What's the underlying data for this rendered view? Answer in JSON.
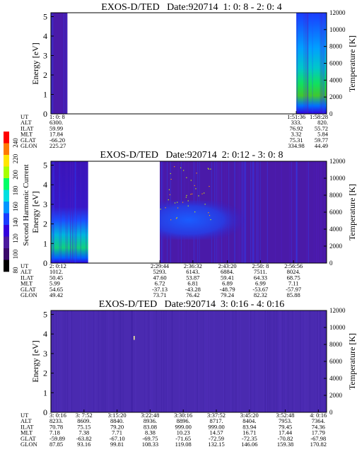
{
  "colorbar": {
    "label": "Second Harmonic Current",
    "ticks": [
      "240",
      "220",
      "200",
      "180",
      "160",
      "140",
      "120",
      "100",
      "80"
    ],
    "colors": [
      "#ff0000",
      "#ff7a00",
      "#ffe600",
      "#a8ff00",
      "#00ff66",
      "#00e0e0",
      "#0096ff",
      "#1a3cff",
      "#3300dd",
      "#4b1a9e",
      "#3a0a6a",
      "#000000"
    ]
  },
  "chart_data": [
    {
      "type": "heatmap",
      "title": "EXOS-D/TED   Date:920714  1: 0: 8 - 2: 0: 4",
      "ylabel": "Energy [eV]",
      "y2label": "Temperature [K]",
      "ylim": [
        0,
        5.2
      ],
      "y2lim": [
        0,
        12000
      ],
      "yticks": [
        "0",
        "1",
        "2",
        "3",
        "4",
        "5"
      ],
      "y2ticks": [
        "0",
        "2000",
        "4000",
        "6000",
        "8000",
        "10000",
        "12000"
      ],
      "data_segments": [
        [
          0,
          0.06
        ],
        [
          0.89,
          1.0
        ]
      ],
      "orbit_table": {
        "rows": [
          "UT",
          "ALT",
          "ILAT",
          "MLT",
          "GLAT",
          "GLON"
        ],
        "columns": [
          {
            "pos": 0,
            "values": [
              "1: 0: 8",
              "6300.",
              "59.99",
              "17.84",
              "-66.20",
              "225.27"
            ]
          },
          {
            "pos": 0.89,
            "values": [
              "1:51:36",
              "333.",
              "76.92",
              "3.32",
              "75.31",
              "334.98"
            ]
          },
          {
            "pos": 1.0,
            "values": [
              "1:58:28",
              "820.",
              "55.72",
              "5.84",
              "59.77",
              "44.49"
            ]
          }
        ]
      }
    },
    {
      "type": "heatmap",
      "title": "EXOS-D/TED   Date:920714  2: 0:12 - 3: 0: 8",
      "ylabel": "Energy [eV]",
      "y2label": "Temperature [K]",
      "ylim": [
        0,
        5.2
      ],
      "y2lim": [
        0,
        12000
      ],
      "yticks": [
        "0",
        "1",
        "2",
        "3",
        "4",
        "5"
      ],
      "y2ticks": [
        "0",
        "2000",
        "4000",
        "6000",
        "8000",
        "10000",
        "12000"
      ],
      "data_segments": [
        [
          0,
          0.135
        ],
        [
          0.395,
          1.0
        ]
      ],
      "orbit_table": {
        "rows": [
          "UT",
          "ALT",
          "ILAT",
          "MLT",
          "GLAT",
          "GLON"
        ],
        "columns": [
          {
            "pos": 0,
            "values": [
              "2: 0:12",
              "1012.",
              "50.45",
              "5.99",
              "54.65",
              "49.42"
            ]
          },
          {
            "pos": 0.395,
            "values": [
              "2:29:44",
              "5293.",
              "47.60",
              "6.72",
              "-37.13",
              "73.71"
            ]
          },
          {
            "pos": 0.515,
            "values": [
              "2:36:32",
              "6143.",
              "53.87",
              "6.81",
              "-43.28",
              "76.42"
            ]
          },
          {
            "pos": 0.64,
            "values": [
              "2:43:20",
              "6884.",
              "59.41",
              "6.89",
              "-48.79",
              "79.24"
            ]
          },
          {
            "pos": 0.76,
            "values": [
              "2:50: 8",
              "7511.",
              "64.33",
              "6.99",
              "-53.67",
              "82.32"
            ]
          },
          {
            "pos": 0.88,
            "values": [
              "2:56:56",
              "8024.",
              "68.75",
              "7.11",
              "-57.97",
              "85.88"
            ]
          }
        ]
      }
    },
    {
      "type": "heatmap",
      "title": "EXOS-D/TED   Date:920714  3: 0:16 - 4: 0:16",
      "ylabel": "Energy [eV]",
      "y2label": "Temperature [K]",
      "ylim": [
        0,
        5.2
      ],
      "y2lim": [
        0,
        12000
      ],
      "yticks": [
        "0",
        "1",
        "2",
        "3",
        "4",
        "5"
      ],
      "y2ticks": [
        "0",
        "2000",
        "4000",
        "6000",
        "8000",
        "10000",
        "12000"
      ],
      "data_segments": [
        [
          0,
          1.0
        ]
      ],
      "orbit_table": {
        "rows": [
          "UT",
          "ALT",
          "ILAT",
          "MLT",
          "GLAT",
          "GLON"
        ],
        "columns": [
          {
            "pos": 0,
            "values": [
              "3: 0:16",
              "8233.",
              "70.78",
              "7.18",
              "-59.89",
              "87.85"
            ]
          },
          {
            "pos": 0.12,
            "values": [
              "3: 7:52",
              "8609.",
              "75.15",
              "7.38",
              "-63.82",
              "93.16"
            ]
          },
          {
            "pos": 0.24,
            "values": [
              "3:15:20",
              "8840.",
              "79.20",
              "7.71",
              "-67.10",
              "99.81"
            ]
          },
          {
            "pos": 0.36,
            "values": [
              "3:22:48",
              "8936.",
              "83.08",
              "8.38",
              "-69.75",
              "108.33"
            ]
          },
          {
            "pos": 0.48,
            "values": [
              "3:30:16",
              "8896.",
              "999.00",
              "10.23",
              "-71.65",
              "119.08"
            ]
          },
          {
            "pos": 0.6,
            "values": [
              "3:37:52",
              "8717.",
              "999.00",
              "14.57",
              "-72.59",
              "132.15"
            ]
          },
          {
            "pos": 0.72,
            "values": [
              "3:45:20",
              "8404.",
              "83.94",
              "16.71",
              "-72.35",
              "146.06"
            ]
          },
          {
            "pos": 0.85,
            "values": [
              "3:52:48",
              "7953.",
              "79.45",
              "17.44",
              "-70.82",
              "159.38"
            ]
          },
          {
            "pos": 0.97,
            "values": [
              "4: 0:16",
              "7364.",
              "74.36",
              "17.79",
              "-67.98",
              "170.82"
            ]
          }
        ]
      }
    }
  ]
}
